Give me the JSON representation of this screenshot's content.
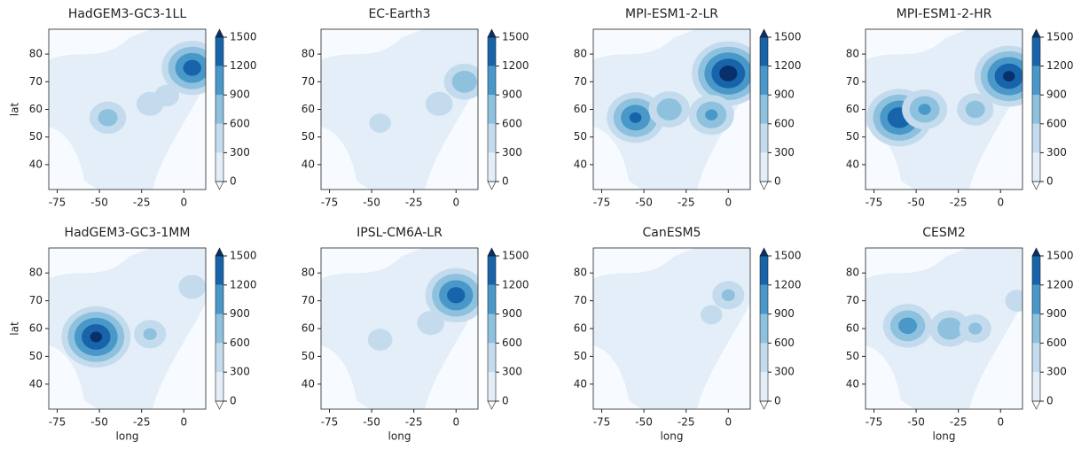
{
  "chart_data": [
    {
      "type": "contour",
      "title": "HadGEM3-GC3-1LL",
      "ylabel": "lat",
      "xlim": [
        -80,
        13
      ],
      "ylim": [
        31,
        89
      ],
      "xticks": [
        -75,
        -50,
        -25,
        0
      ],
      "yticks": [
        40,
        50,
        60,
        70,
        80
      ],
      "cticks": [
        0,
        300,
        600,
        900,
        1200,
        1500
      ],
      "colors": [
        "#f7fbff",
        "#e3eef9",
        "#c4dbee",
        "#8dc1dd",
        "#4a98c9",
        "#1764ab",
        "#08306b"
      ],
      "peaks": {
        "lon": [
          5,
          -45,
          -20,
          -10
        ],
        "lat": [
          75,
          57,
          62,
          65
        ],
        "values": [
          1300,
          700,
          500,
          450
        ]
      }
    },
    {
      "type": "contour",
      "title": "EC-Earth3",
      "xlim": [
        -80,
        13
      ],
      "ylim": [
        31,
        89
      ],
      "xticks": [
        -75,
        -50,
        -25,
        0
      ],
      "yticks": [
        40,
        50,
        60,
        70,
        80
      ],
      "cticks": [
        0,
        300,
        600,
        900,
        1200,
        1500
      ],
      "colors": [
        "#f7fbff",
        "#e3eef9",
        "#c4dbee",
        "#8dc1dd",
        "#4a98c9",
        "#1764ab",
        "#08306b"
      ],
      "peaks": {
        "lon": [
          5,
          -10,
          -45
        ],
        "lat": [
          70,
          62,
          55
        ],
        "values": [
          800,
          500,
          400
        ]
      }
    },
    {
      "type": "contour",
      "title": "MPI-ESM1-2-LR",
      "xlim": [
        -80,
        13
      ],
      "ylim": [
        31,
        89
      ],
      "xticks": [
        -75,
        -50,
        -25,
        0
      ],
      "yticks": [
        40,
        50,
        60,
        70,
        80
      ],
      "cticks": [
        0,
        300,
        600,
        900,
        1200,
        1500
      ],
      "colors": [
        "#f7fbff",
        "#e3eef9",
        "#c4dbee",
        "#8dc1dd",
        "#4a98c9",
        "#1764ab",
        "#08306b"
      ],
      "peaks": {
        "lon": [
          0,
          -55,
          -35,
          -10
        ],
        "lat": [
          73,
          57,
          60,
          58
        ],
        "values": [
          1600,
          1200,
          800,
          900
        ]
      }
    },
    {
      "type": "contour",
      "title": "MPI-ESM1-2-HR",
      "xlim": [
        -80,
        13
      ],
      "ylim": [
        31,
        89
      ],
      "xticks": [
        -75,
        -50,
        -25,
        0
      ],
      "yticks": [
        40,
        50,
        60,
        70,
        80
      ],
      "cticks": [
        0,
        300,
        600,
        900,
        1200,
        1500
      ],
      "colors": [
        "#f7fbff",
        "#e3eef9",
        "#c4dbee",
        "#8dc1dd",
        "#4a98c9",
        "#1764ab",
        "#08306b"
      ],
      "peaks": {
        "lon": [
          5,
          -60,
          -45,
          -15
        ],
        "lat": [
          72,
          57,
          60,
          60
        ],
        "values": [
          1500,
          1400,
          900,
          700
        ]
      }
    },
    {
      "type": "contour",
      "title": "HadGEM3-GC3-1MM",
      "xlabel": "long",
      "ylabel": "lat",
      "xlim": [
        -80,
        13
      ],
      "ylim": [
        31,
        89
      ],
      "xticks": [
        -75,
        -50,
        -25,
        0
      ],
      "yticks": [
        40,
        50,
        60,
        70,
        80
      ],
      "cticks": [
        0,
        300,
        600,
        900,
        1200,
        1500
      ],
      "colors": [
        "#f7fbff",
        "#e3eef9",
        "#c4dbee",
        "#8dc1dd",
        "#4a98c9",
        "#1764ab",
        "#08306b"
      ],
      "peaks": {
        "lon": [
          -52,
          -20,
          5
        ],
        "lat": [
          57,
          58,
          75
        ],
        "values": [
          1500,
          600,
          500
        ]
      }
    },
    {
      "type": "contour",
      "title": "IPSL-CM6A-LR",
      "xlabel": "long",
      "xlim": [
        -80,
        13
      ],
      "ylim": [
        31,
        89
      ],
      "xticks": [
        -75,
        -50,
        -25,
        0
      ],
      "yticks": [
        40,
        50,
        60,
        70,
        80
      ],
      "cticks": [
        0,
        300,
        600,
        900,
        1200,
        1500
      ],
      "colors": [
        "#f7fbff",
        "#e3eef9",
        "#c4dbee",
        "#8dc1dd",
        "#4a98c9",
        "#1764ab",
        "#08306b"
      ],
      "peaks": {
        "lon": [
          0,
          -45,
          -15
        ],
        "lat": [
          72,
          56,
          62
        ],
        "values": [
          1300,
          450,
          500
        ]
      }
    },
    {
      "type": "contour",
      "title": "CanESM5",
      "xlabel": "long",
      "xlim": [
        -80,
        13
      ],
      "ylim": [
        31,
        89
      ],
      "xticks": [
        -75,
        -50,
        -25,
        0
      ],
      "yticks": [
        40,
        50,
        60,
        70,
        80
      ],
      "cticks": [
        0,
        300,
        600,
        900,
        1200,
        1500
      ],
      "colors": [
        "#f7fbff",
        "#e3eef9",
        "#c4dbee",
        "#8dc1dd",
        "#4a98c9",
        "#1764ab",
        "#08306b"
      ],
      "peaks": {
        "lon": [
          0,
          -10
        ],
        "lat": [
          72,
          65
        ],
        "values": [
          600,
          400
        ]
      }
    },
    {
      "type": "contour",
      "title": "CESM2",
      "xlabel": "long",
      "xlim": [
        -80,
        13
      ],
      "ylim": [
        31,
        89
      ],
      "xticks": [
        -75,
        -50,
        -25,
        0
      ],
      "yticks": [
        40,
        50,
        60,
        70,
        80
      ],
      "cticks": [
        0,
        300,
        600,
        900,
        1200,
        1500
      ],
      "colors": [
        "#f7fbff",
        "#e3eef9",
        "#c4dbee",
        "#8dc1dd",
        "#4a98c9",
        "#1764ab",
        "#08306b"
      ],
      "peaks": {
        "lon": [
          -55,
          -30,
          -15,
          10
        ],
        "lat": [
          61,
          60,
          60,
          70
        ],
        "values": [
          1000,
          800,
          600,
          450
        ]
      }
    }
  ]
}
